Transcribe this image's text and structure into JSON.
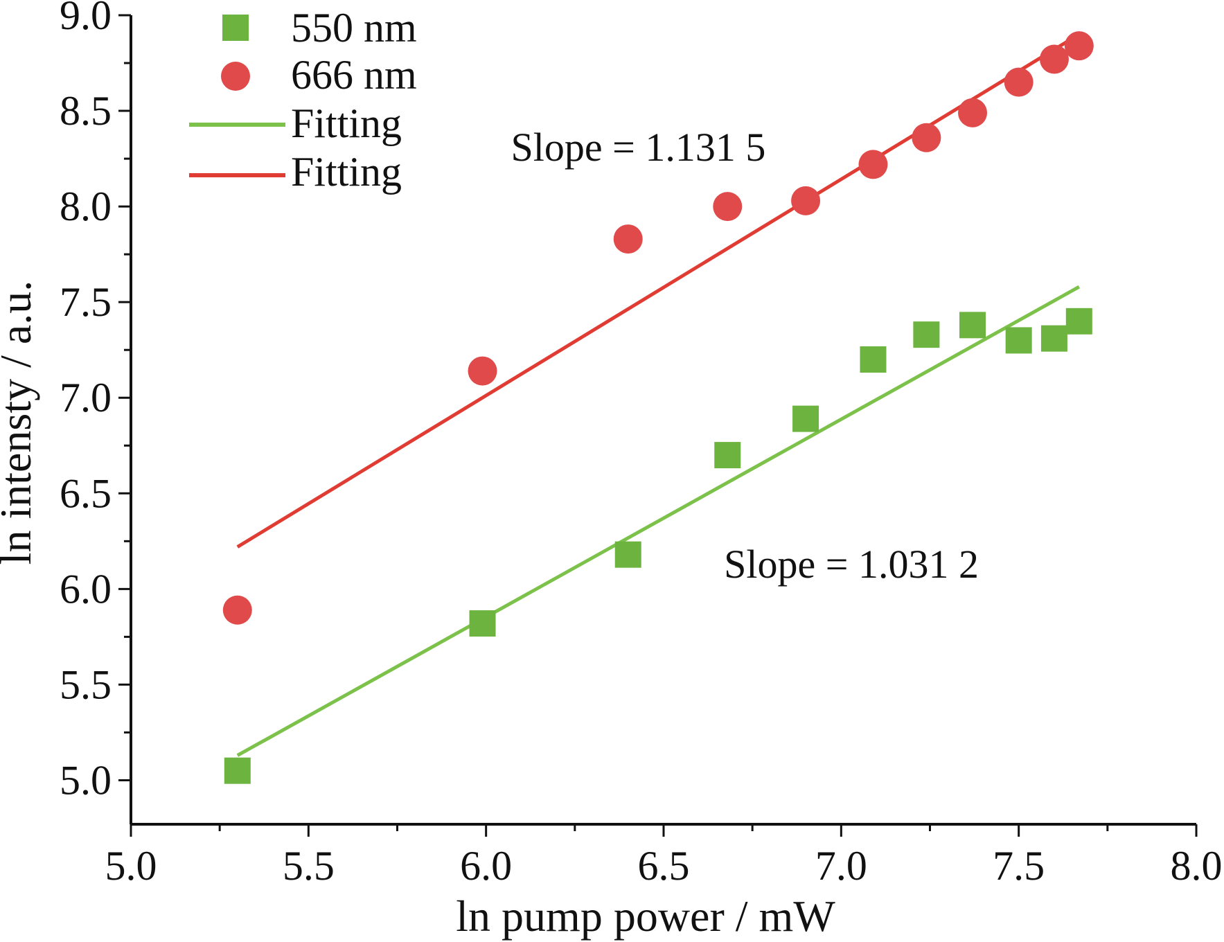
{
  "chart_data": {
    "type": "scatter",
    "xlabel": "ln pump power / mW",
    "ylabel": "ln intensty / a.u.",
    "xlim": [
      5.0,
      8.0
    ],
    "ylim": [
      4.77,
      9.0
    ],
    "x_ticks": [
      "5.0",
      "5.5",
      "6.0",
      "6.5",
      "7.0",
      "7.5",
      "8.0"
    ],
    "y_ticks": [
      "5.0",
      "5.5",
      "6.0",
      "6.5",
      "7.0",
      "7.5",
      "8.0",
      "8.5",
      "9.0"
    ],
    "grid": false,
    "legend_position": "top-left",
    "series": [
      {
        "name": "550 nm",
        "marker": "square",
        "color": "#6db33f",
        "x": [
          5.3,
          5.99,
          6.4,
          6.68,
          6.9,
          7.09,
          7.24,
          7.37,
          7.5,
          7.6,
          7.67
        ],
        "y": [
          5.05,
          5.82,
          6.18,
          6.7,
          6.89,
          7.2,
          7.33,
          7.38,
          7.3,
          7.31,
          7.4
        ]
      },
      {
        "name": "666 nm",
        "marker": "circle",
        "color": "#e04a4a",
        "x": [
          5.3,
          5.99,
          6.4,
          6.68,
          6.9,
          7.09,
          7.24,
          7.37,
          7.5,
          7.6,
          7.67
        ],
        "y": [
          5.89,
          7.14,
          7.83,
          8.0,
          8.03,
          8.22,
          8.36,
          8.49,
          8.65,
          8.77,
          8.84
        ]
      }
    ],
    "fits": [
      {
        "name": "Fitting",
        "color": "#7cc24a",
        "x": [
          5.3,
          7.67
        ],
        "y": [
          5.13,
          7.58
        ]
      },
      {
        "name": "Fitting",
        "color": "#e03c33",
        "x": [
          5.3,
          7.67
        ],
        "y": [
          6.22,
          8.9
        ]
      }
    ],
    "annotations": [
      {
        "text": "Slope = 1.131 5",
        "x": 6.07,
        "y": 8.24
      },
      {
        "text": "Slope = 1.031 2",
        "x": 6.67,
        "y": 6.06
      }
    ]
  }
}
